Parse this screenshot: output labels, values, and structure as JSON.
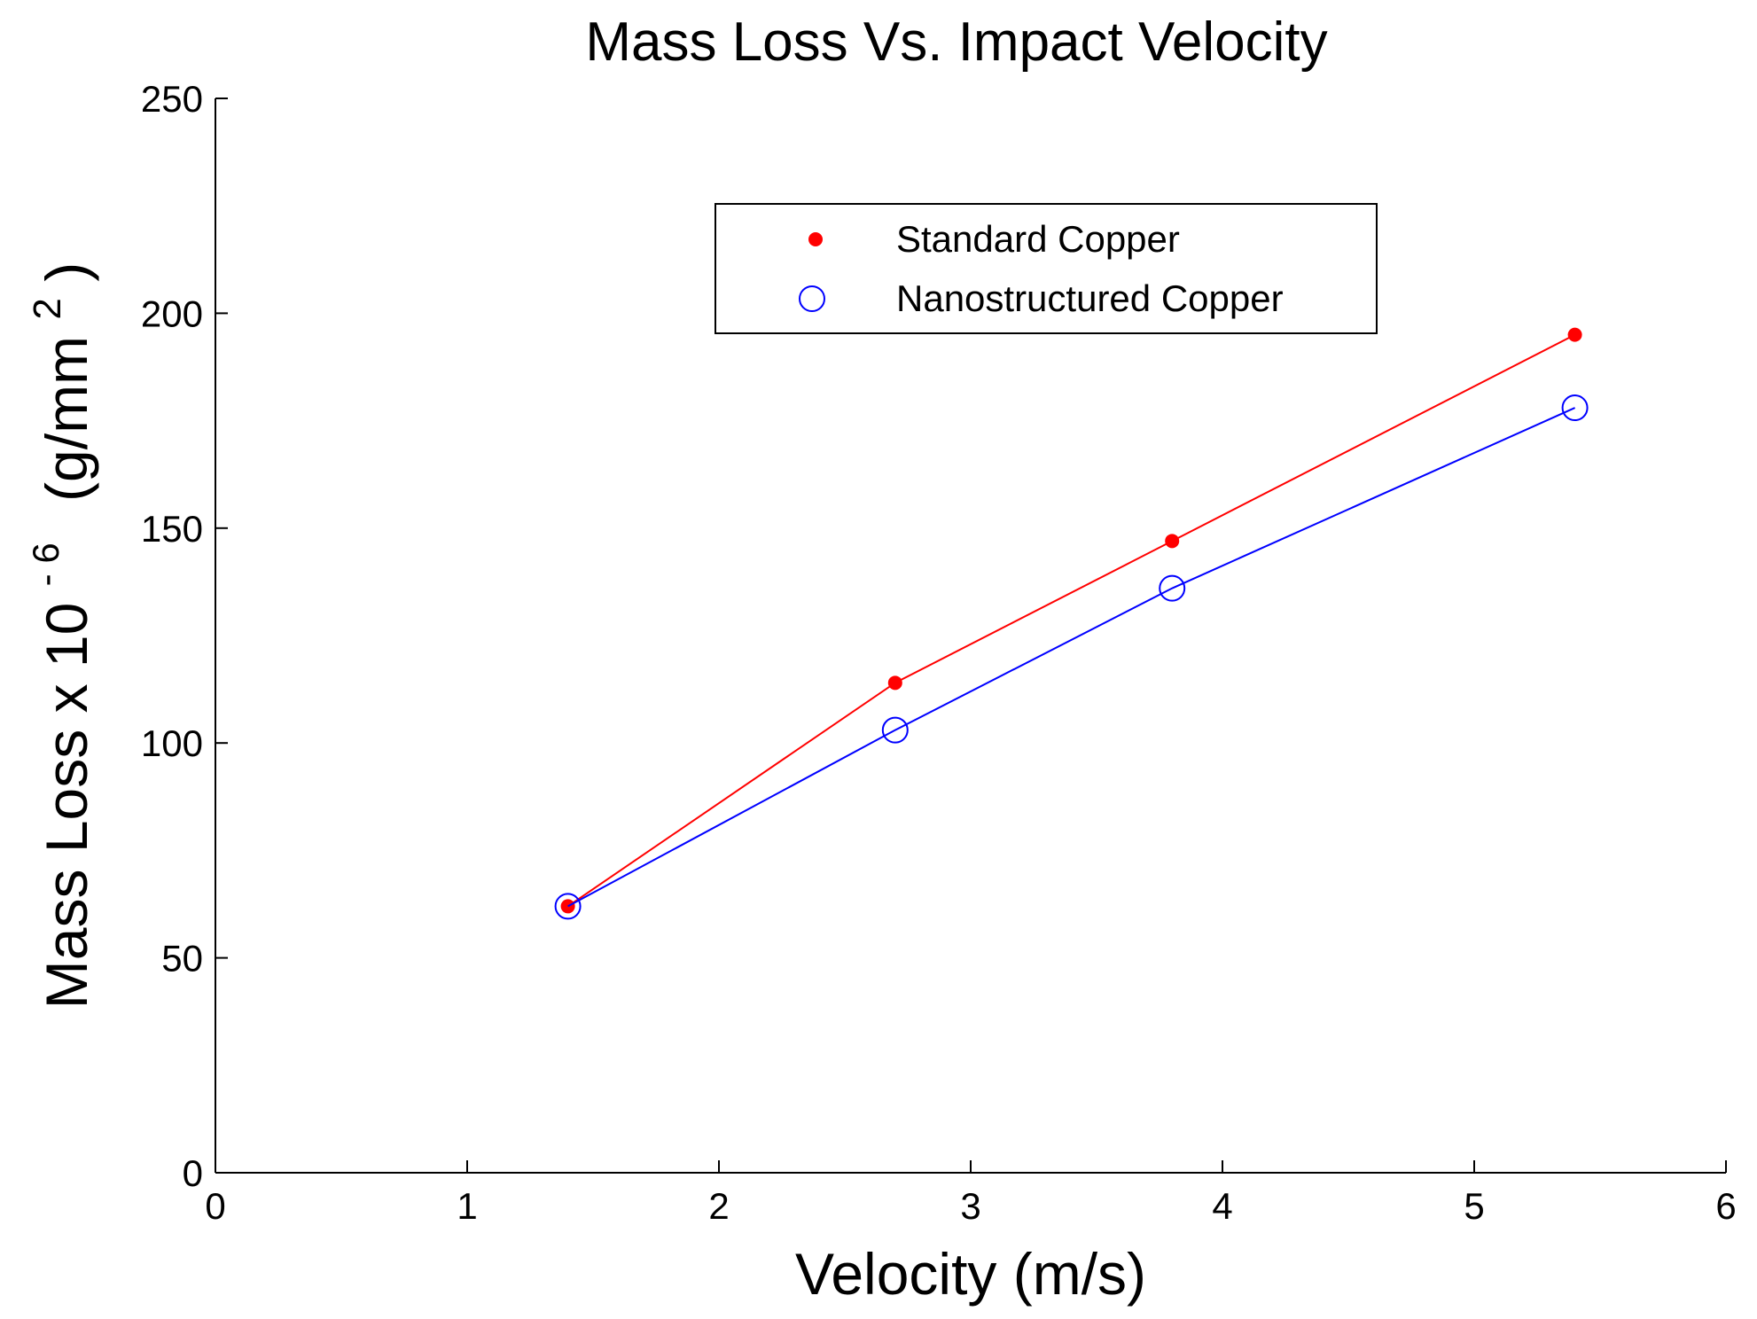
{
  "chart_data": {
    "type": "line",
    "title": "Mass Loss Vs. Impact Velocity",
    "xlabel": "Velocity (m/s)",
    "ylabel": {
      "prefix": "Mass Loss x 10",
      "exponent": "- 6",
      "unit_base": "(g/mm",
      "unit_exponent": "2",
      "unit_close": ")"
    },
    "xlim": [
      0,
      6
    ],
    "ylim": [
      0,
      250
    ],
    "xticks": [
      "0",
      "1",
      "2",
      "3",
      "4",
      "5",
      "6"
    ],
    "yticks": [
      "0",
      "50",
      "100",
      "150",
      "200",
      "250"
    ],
    "grid": false,
    "legend_position": "top-right",
    "series": [
      {
        "name": "Standard Copper",
        "color": "#ff0000",
        "marker": "filled-dot",
        "x": [
          1.4,
          2.7,
          3.8,
          5.4
        ],
        "y": [
          62,
          114,
          147,
          195
        ]
      },
      {
        "name": "Nanostructured Copper",
        "color": "#0000ff",
        "marker": "open-circle",
        "x": [
          1.4,
          2.7,
          3.8,
          5.4
        ],
        "y": [
          62,
          103,
          136,
          178
        ]
      }
    ]
  }
}
